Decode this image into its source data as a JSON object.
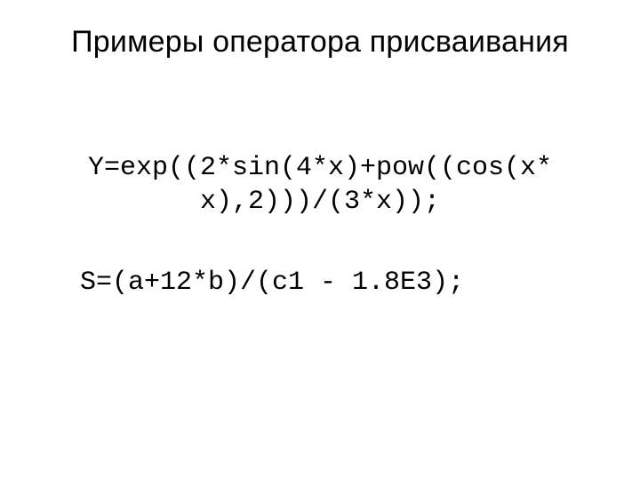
{
  "title": "Примеры оператора присваивания",
  "code": {
    "line1": "Y=exp((2*sin(4*x)+pow((cos(x*",
    "line2": "x),2)))/(3*x));",
    "line3": "S=(a+12*b)/(c1 - 1.8E3);"
  },
  "style": {
    "background": "#ffffff",
    "text_color": "#000000",
    "title_fontsize": 34,
    "code_fontsize": 30,
    "title_font": "Arial",
    "code_font": "Courier New"
  }
}
